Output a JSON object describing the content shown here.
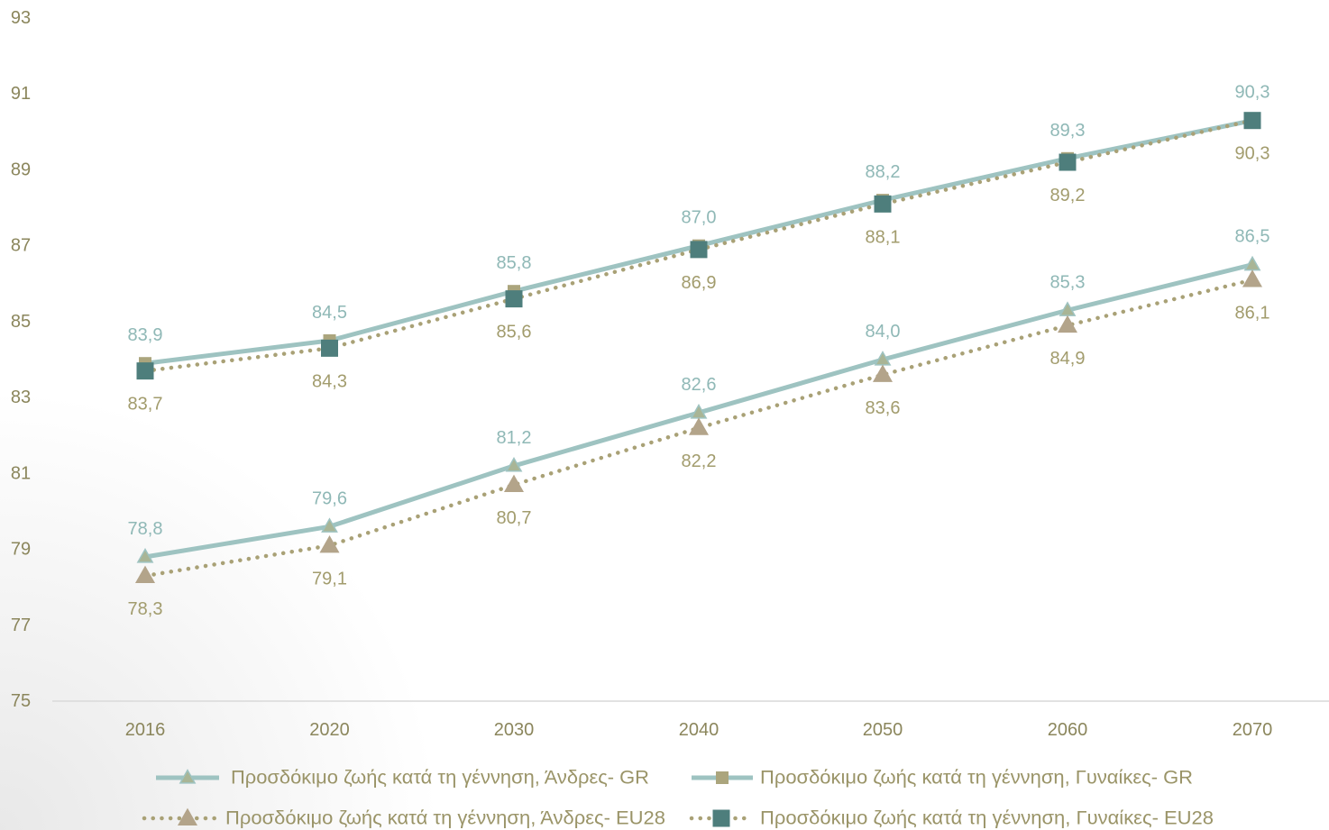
{
  "chart_data": {
    "type": "line",
    "categories": [
      "2016",
      "2020",
      "2030",
      "2040",
      "2050",
      "2060",
      "2070"
    ],
    "ylim": [
      75,
      93
    ],
    "yticks": [
      "75",
      "77",
      "79",
      "81",
      "83",
      "85",
      "87",
      "89",
      "91",
      "93"
    ],
    "grid": false,
    "legend": "bottom",
    "series": [
      {
        "name": "Προσδόκιμο ζωής κατά τη γέννηση, Άνδρες- GR",
        "values": [
          78.8,
          79.6,
          81.2,
          82.6,
          84.0,
          85.3,
          86.5
        ],
        "labels": [
          "78,8",
          "79,6",
          "81,2",
          "82,6",
          "84,0",
          "85,3",
          "86,5"
        ],
        "line_style": "solid",
        "marker": "triangle",
        "line_color": "#9ec3c1",
        "marker_color": "#a9b596",
        "label_color": "#8fb8b6",
        "label_position": "above"
      },
      {
        "name": "Προσδόκιμο ζωής κατά τη γέννηση, Γυναίκες- GR",
        "values": [
          83.9,
          84.5,
          85.8,
          87.0,
          88.2,
          89.3,
          90.3
        ],
        "labels": [
          "83,9",
          "84,5",
          "85,8",
          "87,0",
          "88,2",
          "89,3",
          "90,3"
        ],
        "line_style": "solid",
        "marker": "square",
        "line_color": "#9ec3c1",
        "marker_color": "#aba57d",
        "label_color": "#8fb8b6",
        "label_position": "above"
      },
      {
        "name": "Προσδόκιμο ζωής κατά τη γέννηση, Άνδρες- EU28",
        "values": [
          78.3,
          79.1,
          80.7,
          82.2,
          83.6,
          84.9,
          86.1
        ],
        "labels": [
          "78,3",
          "79,1",
          "80,7",
          "82,2",
          "83,6",
          "84,9",
          "86,1"
        ],
        "line_style": "dotted",
        "marker": "triangle",
        "line_color": "#a9a176",
        "marker_color": "#b3a48a",
        "label_color": "#a29c6d",
        "label_position": "below"
      },
      {
        "name": "Προσδόκιμο ζωής κατά τη γέννηση, Γυναίκες- EU28",
        "values": [
          83.7,
          84.3,
          85.6,
          86.9,
          88.1,
          89.2,
          90.3
        ],
        "labels": [
          "83,7",
          "84,3",
          "85,6",
          "86,9",
          "88,1",
          "89,2",
          "90,3"
        ],
        "line_style": "dotted",
        "marker": "square",
        "line_color": "#a9a176",
        "marker_color": "#4e7e7c",
        "label_color": "#a29c6d",
        "label_position": "below"
      }
    ]
  }
}
